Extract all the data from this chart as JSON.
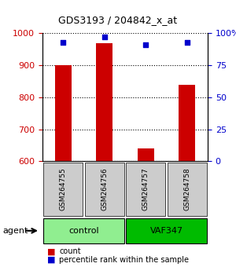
{
  "title": "GDS3193 / 204842_x_at",
  "samples": [
    "GSM264755",
    "GSM264756",
    "GSM264757",
    "GSM264758"
  ],
  "counts": [
    900,
    970,
    640,
    840
  ],
  "percentile_ranks": [
    93,
    97,
    91,
    93
  ],
  "ylim_left": [
    600,
    1000
  ],
  "ylim_right": [
    0,
    100
  ],
  "yticks_left": [
    600,
    700,
    800,
    900,
    1000
  ],
  "yticks_right": [
    0,
    25,
    50,
    75,
    100
  ],
  "yticklabels_right": [
    "0",
    "25",
    "50",
    "75",
    "100%"
  ],
  "bar_color": "#cc0000",
  "dot_color": "#0000cc",
  "bar_width": 0.4,
  "groups": [
    {
      "label": "control",
      "indices": [
        0,
        1
      ],
      "color": "#90ee90"
    },
    {
      "label": "VAF347",
      "indices": [
        2,
        3
      ],
      "color": "#00bb00"
    }
  ],
  "agent_label": "agent",
  "legend_count_label": "count",
  "legend_pct_label": "percentile rank within the sample",
  "grid_color": "#000000",
  "background_color": "#ffffff",
  "sample_box_color": "#cccccc",
  "figsize": [
    3.0,
    3.54
  ],
  "dpi": 100
}
